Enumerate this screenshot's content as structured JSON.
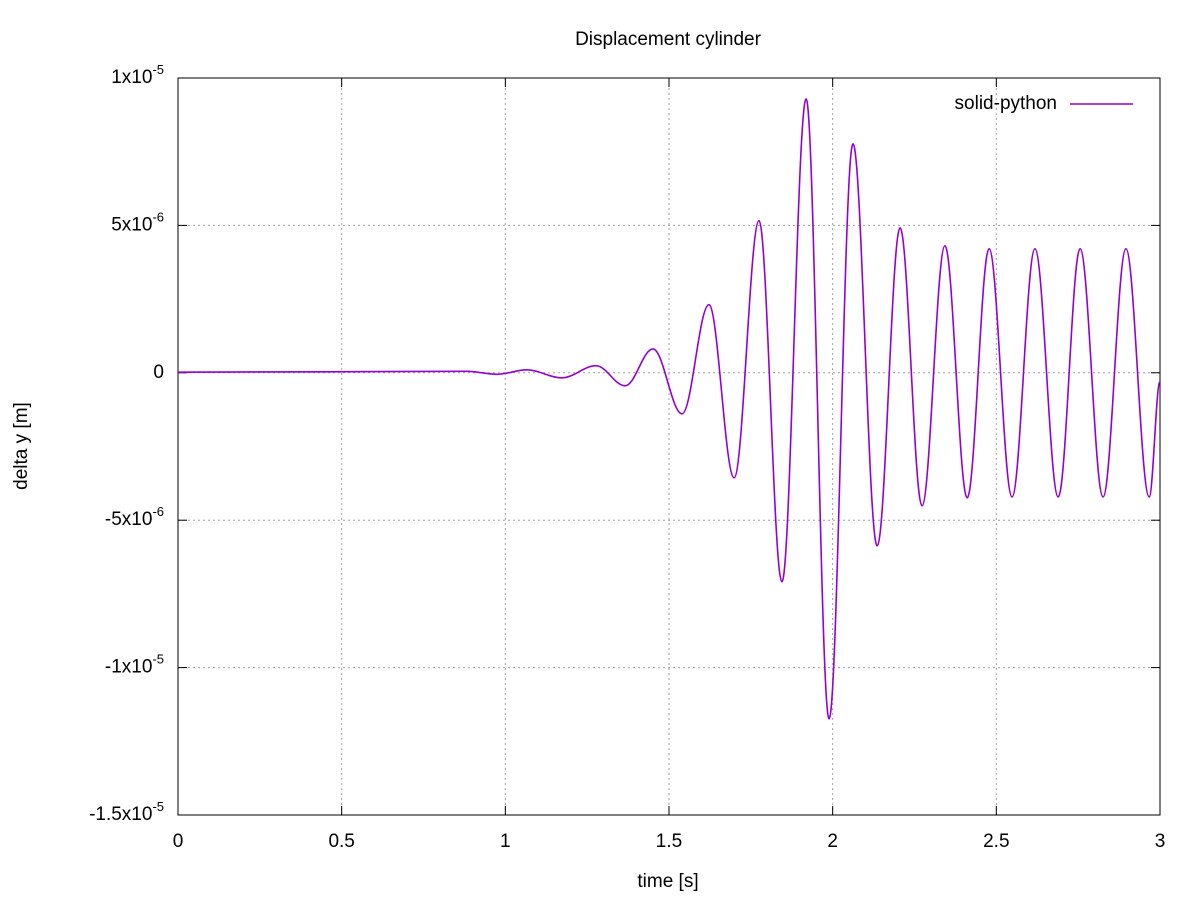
{
  "chart_data": {
    "type": "line",
    "title": "Displacement cylinder",
    "x_label": "time [s]",
    "y_label": "delta y [m]",
    "xlim": [
      0,
      3
    ],
    "ylim": [
      -1.5e-05,
      1e-05
    ],
    "xticks": [
      0,
      0.5,
      1,
      1.5,
      2,
      2.5,
      3
    ],
    "yticks": [
      {
        "value": 1e-05,
        "label": "1x10-5"
      },
      {
        "value": 5e-06,
        "label": "5x10-6"
      },
      0,
      {
        "value": -5e-06,
        "label": "-5x10-6"
      },
      {
        "value": -1e-05,
        "label": "-1x10-5"
      },
      {
        "value": -1.5e-05,
        "label": "-1.5x10-5"
      }
    ],
    "grid": true,
    "legend": "top-right",
    "series": [
      {
        "name": "solid-python",
        "color": "#9400d3",
        "x": [
          0,
          0.883,
          0.975,
          1.066,
          1.173,
          1.277,
          1.366,
          1.451,
          1.54,
          1.622,
          1.699,
          1.775,
          1.845,
          1.919,
          1.989,
          2.062,
          2.136,
          2.206,
          2.273,
          2.343,
          2.411,
          2.478,
          2.548,
          2.618,
          2.689,
          2.756,
          2.826,
          2.896,
          2.967,
          3
        ],
        "values": [
          2e-08,
          5e-08,
          -5e-08,
          1e-07,
          -1.7e-07,
          2.4e-07,
          -4.4e-07,
          8.1e-07,
          -1.39e-06,
          2.31e-06,
          -3.56e-06,
          5.16e-06,
          -7.09e-06,
          9.29e-06,
          -1.174e-05,
          7.77e-06,
          -5.87e-06,
          4.92e-06,
          -4.51e-06,
          4.31e-06,
          -4.24e-06,
          4.21e-06,
          -4.21e-06,
          4.21e-06,
          -4.21e-06,
          4.21e-06,
          -4.21e-06,
          4.21e-06,
          -4.21e-06,
          -3e-07
        ]
      }
    ]
  }
}
